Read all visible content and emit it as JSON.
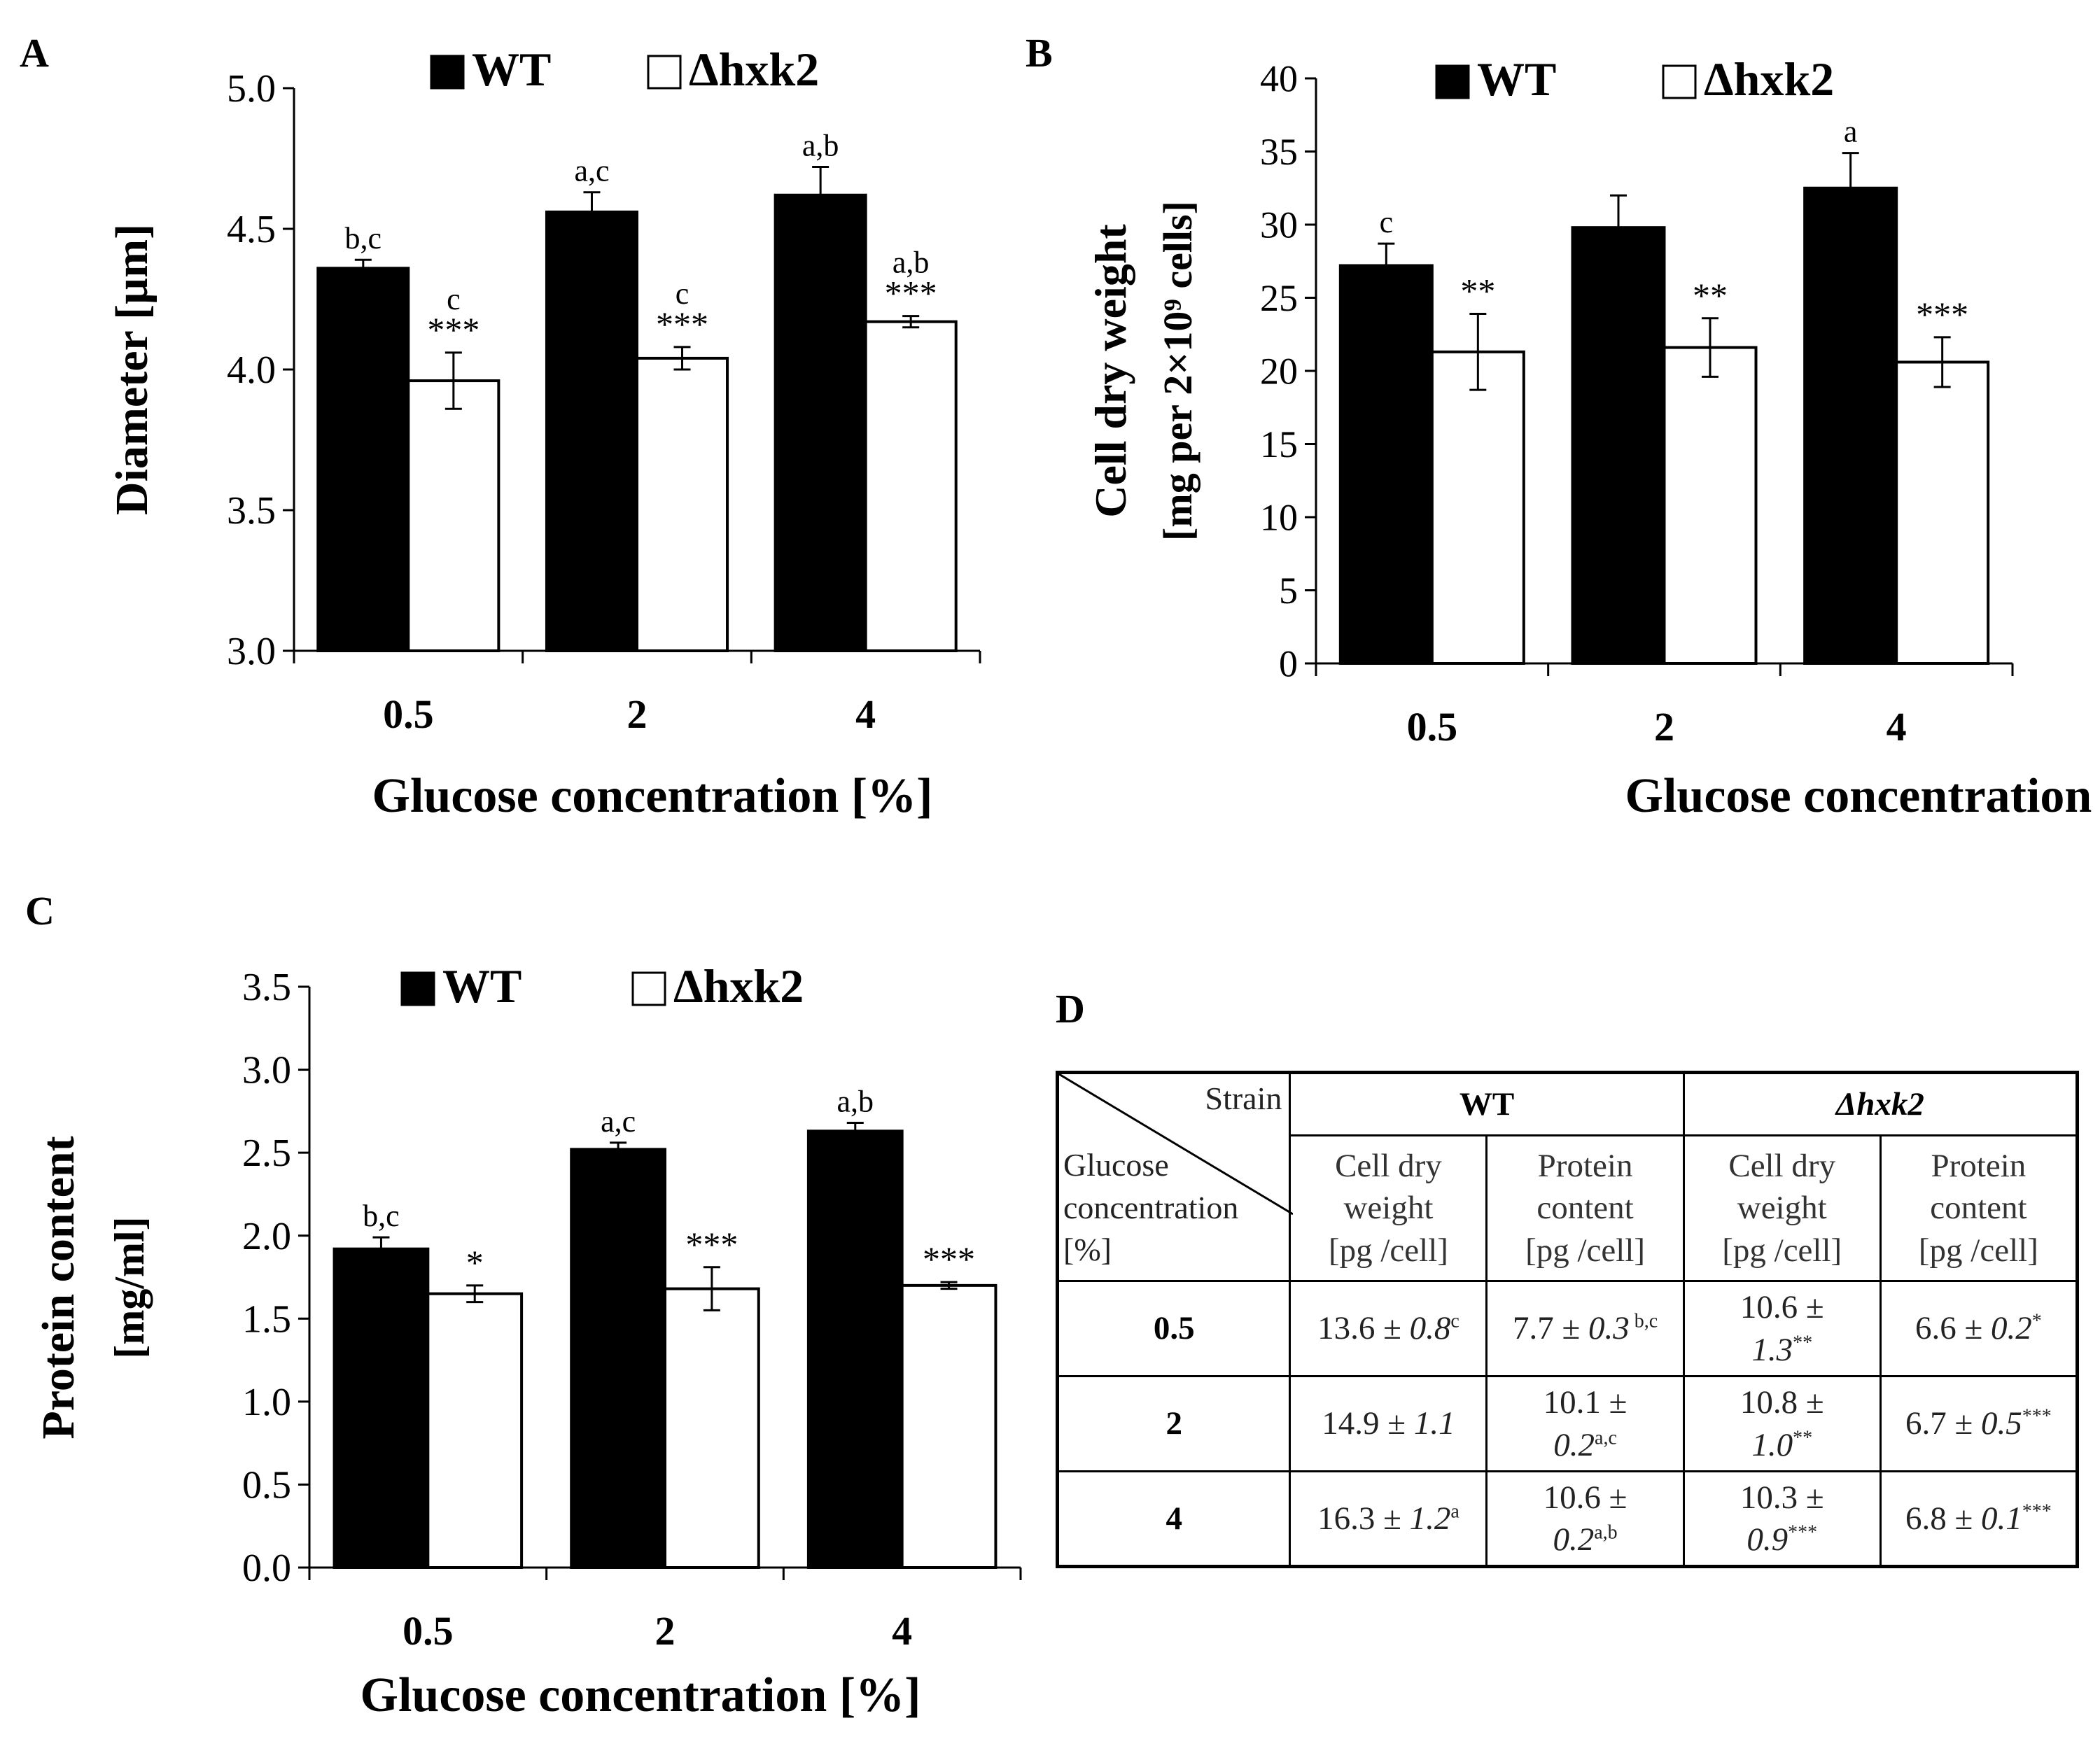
{
  "panels": {
    "a": "A",
    "b": "B",
    "c": "C",
    "d": "D"
  },
  "chart_data": [
    {
      "id": "A",
      "type": "bar",
      "categories": [
        "0.5",
        "2",
        "4"
      ],
      "series": [
        {
          "name": "WT",
          "values": [
            4.36,
            4.56,
            4.62
          ],
          "errors": [
            0.03,
            0.07,
            0.1
          ],
          "labels": [
            "b,c",
            "a,c",
            "a,b"
          ]
        },
        {
          "name": "Δhxk2",
          "values": [
            3.96,
            4.04,
            4.17
          ],
          "errors": [
            0.1,
            0.04,
            0.02
          ],
          "labels": [
            "c\n***",
            "c\n***",
            "a,b\n***"
          ]
        }
      ],
      "title": "",
      "xlabel": "Glucose concentration [%]",
      "ylabel": "Diameter [µm]",
      "ylabel2": "",
      "ylim": [
        3.0,
        5.0
      ],
      "yticks": [
        "3.0",
        "3.5",
        "4.0",
        "4.5",
        "5.0"
      ],
      "legend": [
        "WT",
        "Δhxk2"
      ]
    },
    {
      "id": "B",
      "type": "bar",
      "categories": [
        "0.5",
        "2",
        "4"
      ],
      "series": [
        {
          "name": "WT",
          "values": [
            27.2,
            29.8,
            32.5
          ],
          "errors": [
            1.5,
            2.2,
            2.4
          ],
          "labels": [
            "c",
            "",
            "a"
          ]
        },
        {
          "name": "Δhxk2",
          "values": [
            21.3,
            21.6,
            20.6
          ],
          "errors": [
            2.6,
            2.0,
            1.7
          ],
          "labels": [
            "**",
            "**",
            "***"
          ]
        }
      ],
      "title": "",
      "xlabel": "Glucose concentration [%]",
      "ylabel": "Cell dry weight",
      "ylabel2": "[mg per 2×10⁹ cells]",
      "ylim": [
        0,
        40
      ],
      "yticks": [
        "0",
        "5",
        "10",
        "15",
        "20",
        "25",
        "30",
        "35",
        "40"
      ],
      "legend": [
        "WT",
        "Δhxk2"
      ]
    },
    {
      "id": "C",
      "type": "bar",
      "categories": [
        "0.5",
        "2",
        "4"
      ],
      "series": [
        {
          "name": "WT",
          "values": [
            1.92,
            2.52,
            2.63
          ],
          "errors": [
            0.07,
            0.04,
            0.05
          ],
          "labels": [
            "b,c",
            "a,c",
            "a,b"
          ]
        },
        {
          "name": "Δhxk2",
          "values": [
            1.65,
            1.68,
            1.7
          ],
          "errors": [
            0.05,
            0.13,
            0.02
          ],
          "labels": [
            "*",
            "***",
            "***"
          ]
        }
      ],
      "title": "",
      "xlabel": "Glucose concentration [%]",
      "ylabel": "Protein content",
      "ylabel2": "[mg/ml]",
      "ylim": [
        0.0,
        3.5
      ],
      "yticks": [
        "0.0",
        "0.5",
        "1.0",
        "1.5",
        "2.0",
        "2.5",
        "3.0",
        "3.5"
      ],
      "legend": [
        "WT",
        "Δhxk2"
      ]
    }
  ],
  "table": {
    "corner_strain": "Strain",
    "corner_glucose": [
      "Glucose",
      "concentration",
      "[%]"
    ],
    "wt": "WT",
    "hxk2": "Δhxk2",
    "col_cdw": [
      "Cell dry",
      "weight",
      "[pg /cell]"
    ],
    "col_protein": [
      "Protein",
      "content",
      "[pg /cell]"
    ],
    "rows": [
      {
        "glucose": "0.5",
        "wt_cdw": {
          "val": "13.6 ± ",
          "err": "0.8",
          "sig": "c"
        },
        "wt_prot": {
          "val": "7.7 ± ",
          "err": "0.3",
          "sig": " b,c"
        },
        "hx_cdw": {
          "val": "10.6 ±",
          "err": "1.3",
          "sig": "**"
        },
        "hx_prot": {
          "val": "6.6 ± ",
          "err": "0.2",
          "sig": "*"
        }
      },
      {
        "glucose": "2",
        "wt_cdw": {
          "val": "14.9 ± ",
          "err": "1.1",
          "sig": ""
        },
        "wt_prot": {
          "val": "10.1 ±",
          "err": "0.2",
          "sig": "a,c"
        },
        "hx_cdw": {
          "val": "10.8 ±",
          "err": "1.0",
          "sig": "**"
        },
        "hx_prot": {
          "val": "6.7 ± ",
          "err": "0.5",
          "sig": "***"
        }
      },
      {
        "glucose": "4",
        "wt_cdw": {
          "val": "16.3 ± ",
          "err": "1.2",
          "sig": "a"
        },
        "wt_prot": {
          "val": "10.6 ±",
          "err": "0.2",
          "sig": "a,b"
        },
        "hx_cdw": {
          "val": "10.3 ±",
          "err": "0.9",
          "sig": "***"
        },
        "hx_prot": {
          "val": "6.8 ± ",
          "err": "0.1",
          "sig": "***"
        }
      }
    ]
  }
}
